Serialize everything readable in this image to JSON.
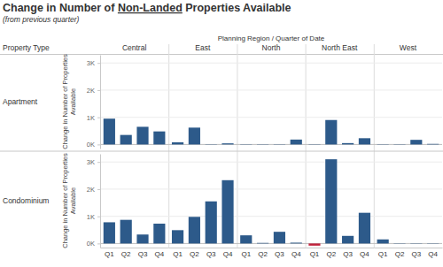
{
  "chart_data": {
    "type": "bar",
    "title": [
      "Change in Number of ",
      "Non-Landed",
      " Properties Available"
    ],
    "subtitle": "(from previous quarter)",
    "x_label": "Planning Region / Quarter of Date",
    "row_label": "Property Type",
    "ylabel": [
      "Change in Number of Properties",
      "Available"
    ],
    "columns": [
      "Central",
      "East",
      "North",
      "North East",
      "West"
    ],
    "categories": [
      "Q1",
      "Q2",
      "Q3",
      "Q4"
    ],
    "rows": [
      {
        "name": "Apartment",
        "values": [
          [
            950,
            350,
            650,
            480
          ],
          [
            80,
            620,
            10,
            40
          ],
          [
            10,
            10,
            10,
            180
          ],
          [
            10,
            900,
            50,
            230
          ],
          [
            10,
            10,
            170,
            20
          ]
        ],
        "colors": [
          [
            "#2d5a8a",
            "#2d5a8a",
            "#2d5a8a",
            "#2d5a8a"
          ],
          [
            "#2d5a8a",
            "#2d5a8a",
            "#2d5a8a",
            "#2d5a8a"
          ],
          [
            "#2d5a8a",
            "#2d5a8a",
            "#2d5a8a",
            "#2d5a8a"
          ],
          [
            "#2d5a8a",
            "#2d5a8a",
            "#2d5a8a",
            "#2d5a8a"
          ],
          [
            "#2d5a8a",
            "#2d5a8a",
            "#2d5a8a",
            "#2d5a8a"
          ]
        ]
      },
      {
        "name": "Condominium",
        "values": [
          [
            780,
            870,
            330,
            730
          ],
          [
            490,
            980,
            1550,
            2330
          ],
          [
            300,
            20,
            430,
            30
          ],
          [
            -80,
            3100,
            280,
            1130
          ],
          [
            150,
            10,
            10,
            10
          ]
        ],
        "colors": [
          [
            "#2d5a8a",
            "#2d5a8a",
            "#2d5a8a",
            "#2d5a8a"
          ],
          [
            "#2d5a8a",
            "#2d5a8a",
            "#2d5a8a",
            "#2d5a8a"
          ],
          [
            "#2d5a8a",
            "#2d5a8a",
            "#2d5a8a",
            "#2d5a8a"
          ],
          [
            "#c0223b",
            "#2d5a8a",
            "#2d5a8a",
            "#2d5a8a"
          ],
          [
            "#2d5a8a",
            "#2d5a8a",
            "#2d5a8a",
            "#2d5a8a"
          ]
        ]
      }
    ],
    "ylim": [
      -150,
      3300
    ],
    "yticks": [
      {
        "value": 0,
        "label": "0K"
      },
      {
        "value": 1000,
        "label": "1K"
      },
      {
        "value": 2000,
        "label": "2K"
      },
      {
        "value": 3000,
        "label": "3K"
      }
    ],
    "grid": true
  }
}
